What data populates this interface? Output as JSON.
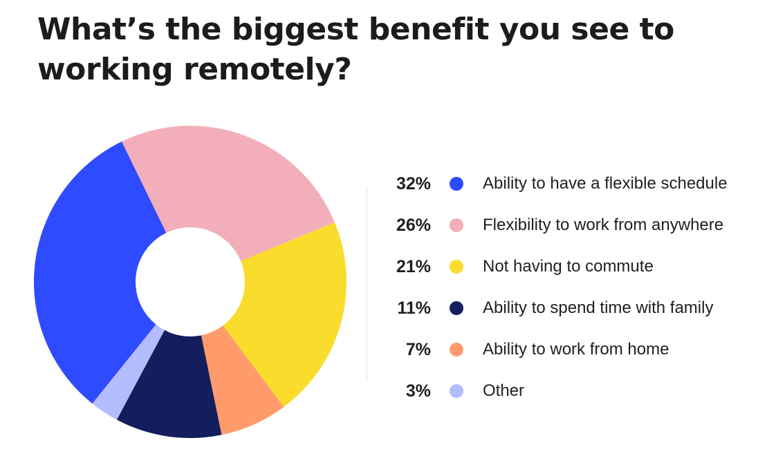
{
  "chart_data": {
    "type": "pie",
    "title": "What’s the biggest benefit you see to working remotely?",
    "categories": [
      "Ability to have a flexible schedule",
      "Flexibility to work from anywhere",
      "Not having to commute",
      "Ability to spend time with family",
      "Ability to work from home",
      "Other"
    ],
    "values": [
      32,
      26,
      21,
      11,
      7,
      3
    ],
    "value_labels": [
      "32%",
      "26%",
      "21%",
      "11%",
      "7%",
      "3%"
    ],
    "colors": [
      "#2f4bff",
      "#f2afba",
      "#f9dc2c",
      "#141d5e",
      "#ff9b6a",
      "#b3bcff"
    ],
    "donut": true,
    "legend_position": "right"
  }
}
